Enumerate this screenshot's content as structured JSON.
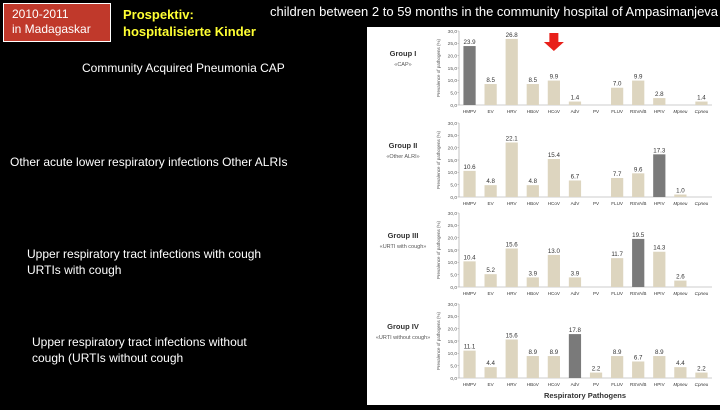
{
  "badge": {
    "line1": "2010-2011",
    "line2": "in Madagaskar"
  },
  "subtitle": {
    "line1": "Prospektiv:",
    "line2": "hospitalisierte Kinder"
  },
  "heading": "children between 2 to 59 months in the community hospital of Ampasimanjeva",
  "labels": {
    "group1": {
      "line1": "Community Acquired Pneumonia   CAP"
    },
    "group2": {
      "line1": "Other acute lower respiratory infections  Other ALRIs"
    },
    "group3": {
      "line1": "Upper respiratory tract infections with cough",
      "line2": "URTIs with cough"
    },
    "group4": {
      "line1": "Upper respiratory tract infections without",
      "line2": "cough (URTIs without cough"
    }
  },
  "colors": {
    "bar": "#ddd5bf",
    "highlight": "#7a7a7a",
    "arrow": "#e8201a",
    "axis": "#999999"
  },
  "chart_data": {
    "type": "bar",
    "categories": [
      "HMPV",
      "EV",
      "HRV",
      "HBoV",
      "HCoV",
      "AdV",
      "PV",
      "FLUV",
      "RSVA/B",
      "HPIV",
      "Mpneu",
      "Cpneu"
    ],
    "ylabel": "Prevalence of pathogens (%)",
    "xlabel": "Respiratory Pathogens",
    "ylim": [
      0,
      30
    ],
    "yticks": [
      "0,0",
      "5,0",
      "10,0",
      "15,0",
      "20,0",
      "25,0",
      "30,0"
    ],
    "panels": [
      {
        "title": "Group I",
        "sub": "«CAP»",
        "values": [
          23.9,
          8.5,
          26.8,
          8.5,
          9.9,
          1.4,
          0,
          7.0,
          9.9,
          2.8,
          0,
          1.4
        ],
        "labels": [
          "23.9",
          "8.5",
          "26.8",
          "8.5",
          "9.9",
          "1.4",
          "",
          "7.0",
          "9.9",
          "2.8",
          "",
          "1.4"
        ],
        "highlight": 0,
        "arrow": 4
      },
      {
        "title": "Group II",
        "sub": "«Other ALRI»",
        "values": [
          10.6,
          4.8,
          22.1,
          4.8,
          15.4,
          6.7,
          0,
          7.7,
          9.6,
          17.3,
          1.0,
          0
        ],
        "labels": [
          "10.6",
          "4.8",
          "22.1",
          "4.8",
          "15.4",
          "6.7",
          "",
          "7.7",
          "9.6",
          "17.3",
          "1.0",
          ""
        ],
        "highlight": 9
      },
      {
        "title": "Group III",
        "sub": "«URTI with cough»",
        "values": [
          10.4,
          5.2,
          15.6,
          3.9,
          13.0,
          3.9,
          0,
          11.7,
          19.5,
          14.3,
          2.6,
          0
        ],
        "labels": [
          "10.4",
          "5.2",
          "15.6",
          "3.9",
          "13.0",
          "3.9",
          "",
          "11.7",
          "19.5",
          "14.3",
          "2.6",
          ""
        ],
        "highlight": 8
      },
      {
        "title": "Group IV",
        "sub": "«URTI without cough»",
        "values": [
          11.1,
          4.4,
          15.6,
          8.9,
          8.9,
          17.8,
          2.2,
          8.9,
          6.7,
          8.9,
          4.4,
          2.2
        ],
        "labels": [
          "11.1",
          "4.4",
          "15.6",
          "8.9",
          "8.9",
          "17.8",
          "2.2",
          "8.9",
          "6.7",
          "8.9",
          "4.4",
          "2.2"
        ],
        "highlight": 5
      }
    ]
  }
}
